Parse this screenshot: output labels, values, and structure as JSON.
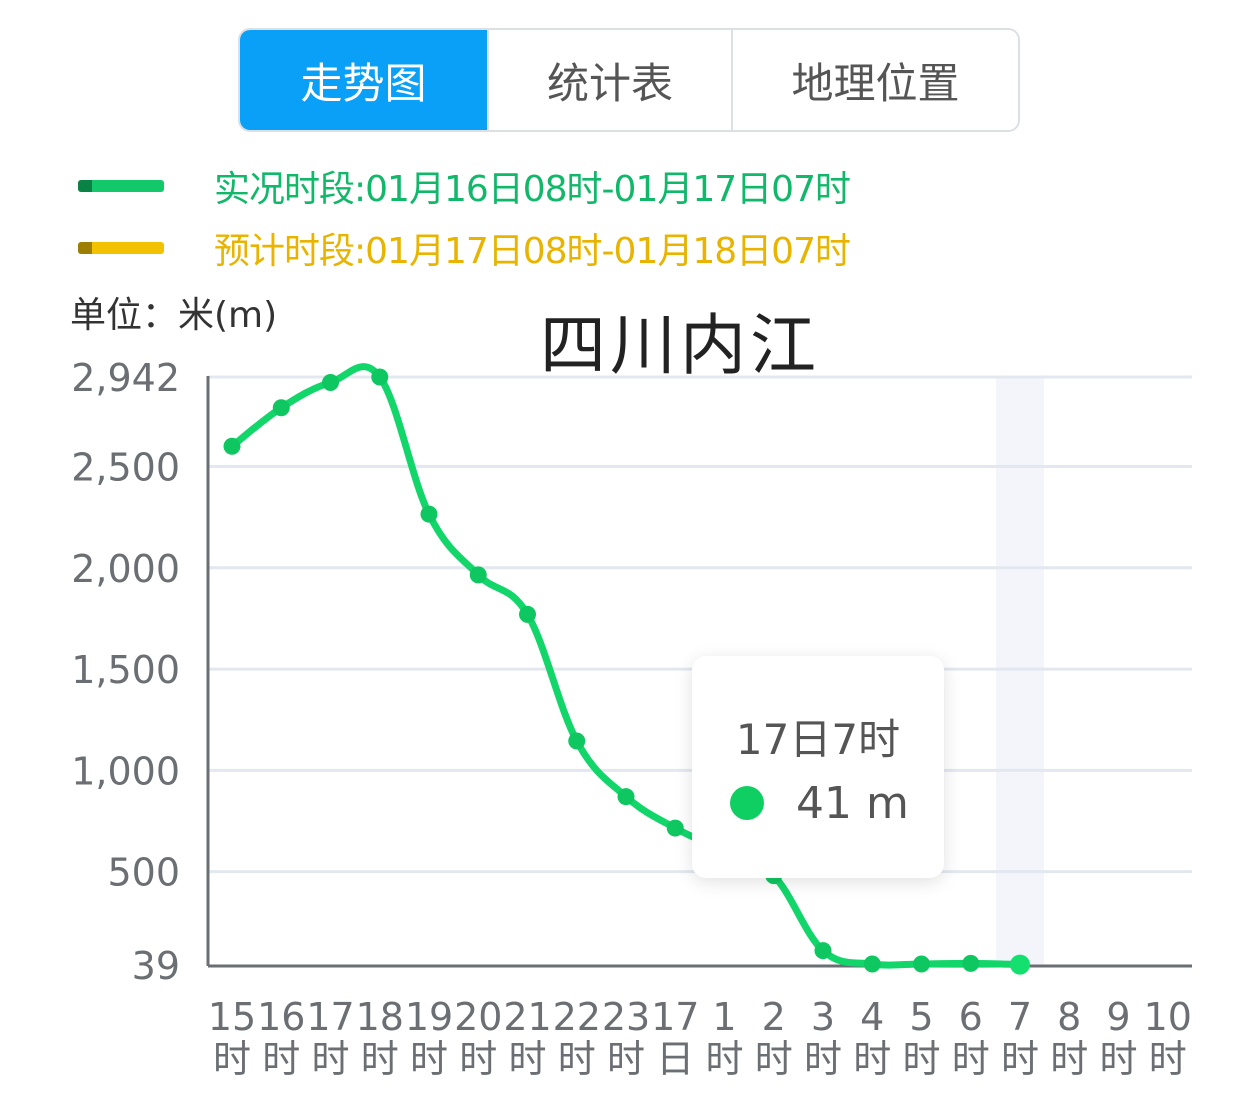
{
  "tabs": [
    {
      "label": "走势图",
      "active": true
    },
    {
      "label": "统计表",
      "active": false
    },
    {
      "label": "地理位置",
      "active": false
    }
  ],
  "legend": [
    {
      "label": "实况时段:01月16日08时-01月17日07时",
      "color": "#12c86a"
    },
    {
      "label": "预计时段:01月17日08时-01月18日07时",
      "color": "#f2c200"
    }
  ],
  "unit_label": "单位：米(m)",
  "chart_title": "四川内江",
  "tooltip": {
    "title": "17日7时",
    "value": "41 m",
    "dot_color": "#0fcf63"
  },
  "colors": {
    "line": "#12d66a",
    "tab_active": "#0aa0f8",
    "grid": "#e3e8f0",
    "axis": "#6b6e73",
    "highlight_band": "#f3f5fa"
  },
  "chart_data": {
    "type": "line",
    "title": "四川内江",
    "xlabel": "",
    "ylabel": "单位：米(m)",
    "categories": [
      "15时",
      "16时",
      "17时",
      "18时",
      "19时",
      "20时",
      "21时",
      "22时",
      "23时",
      "17日",
      "1时",
      "2时",
      "3时",
      "4时",
      "5时",
      "6时",
      "7时",
      "8时",
      "9时",
      "10时"
    ],
    "y_ticks": [
      39,
      500,
      1000,
      1500,
      2000,
      2500,
      2942
    ],
    "y_tick_labels": [
      "39",
      "500",
      "1,000",
      "1,500",
      "2,000",
      "2,500",
      "2,942"
    ],
    "ylim": [
      39,
      2942
    ],
    "grid": true,
    "legend_position": "top",
    "highlight_category": "7时",
    "series": [
      {
        "name": "实况时段:01月16日08时-01月17日07时",
        "color": "#12d66a",
        "values": [
          2600,
          2790,
          2915,
          2942,
          2265,
          1965,
          1770,
          1145,
          870,
          715,
          600,
          480,
          110,
          44,
          44,
          47,
          41,
          null,
          null,
          null
        ]
      }
    ]
  }
}
